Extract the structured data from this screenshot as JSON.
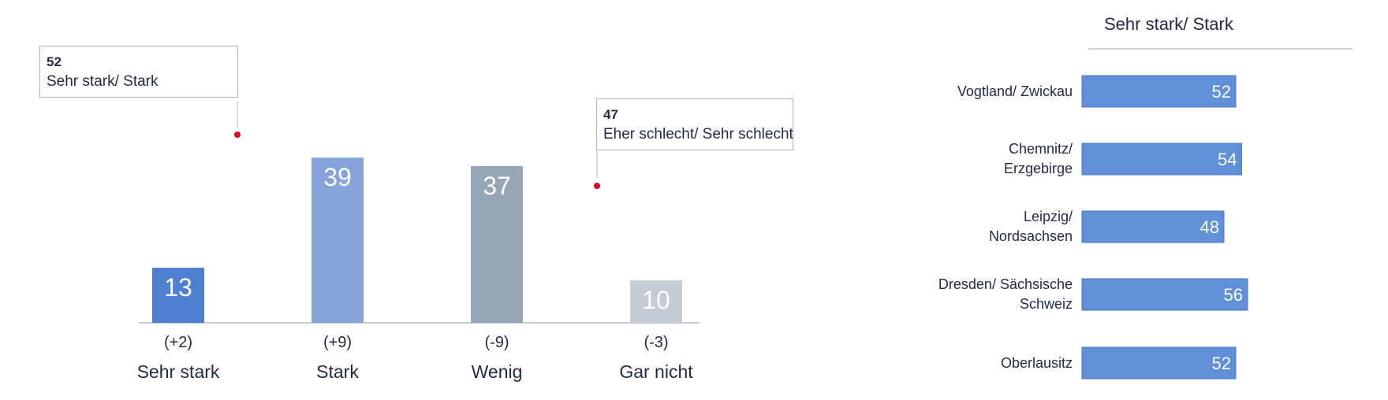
{
  "left": {
    "callouts": [
      {
        "value": "52",
        "label": "Sehr stark/ Stark"
      },
      {
        "value": "47",
        "label": "Eher schlecht/ Sehr schlecht"
      }
    ]
  },
  "right": {
    "title": "Sehr stark/ Stark"
  },
  "chart_data": [
    {
      "type": "bar",
      "categories": [
        "Sehr stark",
        "Stark",
        "Wenig",
        "Gar nicht"
      ],
      "values": [
        13,
        39,
        37,
        10
      ],
      "changes": [
        "(+2)",
        "(+9)",
        "(-9)",
        "(-3)"
      ],
      "colors": [
        "#4f7fcf",
        "#86a4da",
        "#97a6b6",
        "#c4cbd4"
      ],
      "ylim": [
        0,
        55
      ],
      "grid": false,
      "legend": "none"
    },
    {
      "type": "bar",
      "orientation": "horizontal",
      "title": "Sehr stark/ Stark",
      "categories": [
        [
          "Vogtland/ Zwickau"
        ],
        [
          "Chemnitz/",
          "Erzgebirge"
        ],
        [
          "Leipzig/",
          "Nordsachsen"
        ],
        [
          "Dresden/ Sächsische",
          "Schweiz"
        ],
        [
          "Oberlausitz"
        ]
      ],
      "values": [
        52,
        54,
        48,
        56,
        52
      ],
      "color": "#6090d8",
      "xlim": [
        0,
        56
      ],
      "grid": false,
      "legend": "none"
    }
  ]
}
